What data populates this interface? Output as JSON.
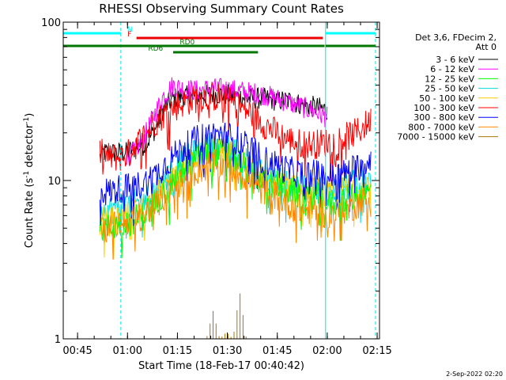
{
  "chart_data": {
    "type": "line",
    "title": "RHESSI Observing Summary Count Rates",
    "xlabel": "Start Time (18-Feb-17 00:40:42)",
    "ylabel_main": "Count Rate (s",
    "ylabel_sup1": "-1",
    "ylabel_mid": " detector",
    "ylabel_sup2": "-1",
    "ylabel_end": ")",
    "y_scale": "log",
    "ylim": [
      1,
      100
    ],
    "xlim_minutes": [
      0.0,
      95.0
    ],
    "x_ticks": [
      {
        "label": "00:45",
        "t": 4.3
      },
      {
        "label": "01:00",
        "t": 19.3
      },
      {
        "label": "01:15",
        "t": 34.3
      },
      {
        "label": "01:30",
        "t": 49.3
      },
      {
        "label": "01:45",
        "t": 64.3
      },
      {
        "label": "02:00",
        "t": 79.3
      },
      {
        "label": "02:15",
        "t": 94.3
      }
    ],
    "y_ticks": [
      {
        "label": "1",
        "v": 1
      },
      {
        "label": "10",
        "v": 10
      },
      {
        "label": "100",
        "v": 100
      }
    ],
    "date_stamp": "2-Sep-2022 02:20",
    "legend_header": [
      "Det 3,6, FDecim 2,",
      "Att 0"
    ],
    "series": [
      {
        "name": "3 - 6 keV",
        "color": "#000000",
        "t": [
          11,
          12,
          19,
          20,
          25,
          28,
          30,
          33,
          36,
          40,
          44,
          48,
          52,
          56,
          60,
          64,
          68,
          72,
          76,
          79.3
        ],
        "v": [
          14,
          15,
          15,
          15.5,
          17,
          22,
          28,
          33,
          34,
          34,
          35,
          35,
          34,
          33,
          33,
          32,
          32,
          30,
          29,
          28
        ]
      },
      {
        "name": "6 - 12 keV",
        "color": "#ff00ff",
        "t": [
          19,
          21,
          24,
          27,
          30,
          33,
          36,
          40,
          44,
          48,
          52,
          56,
          60,
          64,
          68,
          72,
          76,
          79.3
        ],
        "v": [
          14,
          15,
          18,
          25,
          34,
          40,
          38,
          37,
          38,
          38,
          37,
          36,
          35,
          33,
          31,
          29,
          27,
          25
        ]
      },
      {
        "name": "12 - 25 keV",
        "color": "#00ff00",
        "t": [
          11,
          14,
          18,
          20,
          24,
          28,
          32,
          36,
          40,
          44,
          48,
          52,
          56,
          60,
          64,
          68,
          72,
          76,
          80,
          84,
          88,
          92.5
        ],
        "v": [
          5,
          5,
          5.5,
          5.5,
          6,
          7.5,
          9.5,
          11.5,
          13.5,
          15,
          15,
          13.5,
          11.5,
          9.5,
          9.5,
          8.5,
          8,
          8,
          7,
          7.5,
          8,
          8.5
        ]
      },
      {
        "name": "25 - 50 keV",
        "color": "#00dddd",
        "t": [
          11,
          14,
          18,
          20,
          24,
          28,
          32,
          36,
          40,
          44,
          48,
          52,
          56,
          60,
          64,
          68,
          72,
          76,
          80,
          84,
          88,
          92.5
        ],
        "v": [
          6.5,
          6.5,
          7,
          7,
          7.5,
          9,
          11,
          13,
          15,
          16.5,
          16.5,
          15,
          13,
          11,
          10.5,
          9.5,
          9,
          9,
          8.5,
          9,
          9.5,
          10
        ]
      },
      {
        "name": "50 - 100 keV",
        "color": "#ffcc00",
        "t": [
          11,
          14,
          18,
          20,
          24,
          28,
          32,
          36,
          40,
          44,
          48,
          52,
          56,
          60,
          64,
          68,
          72,
          76,
          80,
          84,
          88,
          92.5
        ],
        "v": [
          5.5,
          5.5,
          6,
          6,
          6.5,
          8,
          10,
          12,
          14,
          15.5,
          15.5,
          14,
          12,
          10,
          9.8,
          9,
          8.5,
          8.5,
          8,
          8.5,
          9,
          9.5
        ]
      },
      {
        "name": "100 - 300 keV",
        "color": "#ff0000",
        "t": [
          11,
          14,
          17,
          20,
          22,
          25,
          28,
          32,
          36,
          40,
          44,
          48,
          52,
          56,
          60,
          64,
          68,
          72,
          76,
          80,
          84,
          88,
          92.5
        ],
        "v": [
          15,
          14,
          14,
          15,
          17,
          20,
          24,
          28,
          31,
          33,
          34,
          33,
          30,
          27,
          23,
          20,
          18,
          17,
          17,
          17.5,
          18.5,
          20,
          24
        ]
      },
      {
        "name": "300 - 800 keV",
        "color": "#0000ff",
        "t": [
          11,
          14,
          18,
          20,
          24,
          28,
          32,
          36,
          40,
          44,
          48,
          52,
          56,
          60,
          64,
          68,
          72,
          76,
          80,
          84,
          88,
          92.5
        ],
        "v": [
          8.5,
          8.5,
          9,
          9,
          9.5,
          11,
          13.5,
          16,
          18,
          19.5,
          19.5,
          18,
          16,
          13.5,
          12.5,
          11.5,
          11,
          11,
          10.5,
          11,
          12,
          14
        ]
      },
      {
        "name": "800 - 7000 keV",
        "color": "#ff8800",
        "t": [
          11,
          14,
          18,
          20,
          24,
          28,
          32,
          36,
          40,
          44,
          48,
          52,
          56,
          60,
          64,
          68,
          72,
          76,
          80,
          84,
          88,
          92.5
        ],
        "v": [
          5,
          5,
          5.5,
          5.5,
          6,
          7,
          8.5,
          10,
          11.5,
          12.5,
          12.5,
          11.5,
          10,
          8.5,
          8,
          7,
          6.5,
          6.5,
          6,
          6.5,
          7,
          8
        ]
      },
      {
        "name": "7000 - 15000 keV",
        "color": "#aa7700",
        "t": [
          40.5,
          43,
          45,
          47,
          49,
          51,
          53,
          55,
          60
        ],
        "v": [
          1,
          1,
          1.5,
          1,
          1.1,
          1,
          2,
          1,
          1
        ]
      }
    ],
    "vlines": [
      {
        "t": 0.0,
        "style": "solid"
      },
      {
        "t": 17.3,
        "style": "dashed"
      },
      {
        "t": 78.8,
        "style": "solid"
      },
      {
        "t": 93.8,
        "style": "dashed"
      }
    ],
    "flag_bars": [
      {
        "label": "N",
        "color": "#00ffff",
        "y": 42,
        "segments": [
          [
            0.0,
            17.3
          ],
          [
            78.8,
            93.8
          ]
        ],
        "label_t": 19.2
      },
      {
        "label": "F",
        "color": "#ee0000",
        "y": 48,
        "segments": [
          [
            22.0,
            78.0
          ]
        ],
        "label_t": 19.3
      },
      {
        "label": "RD0",
        "color": "#007700",
        "y": 58,
        "segments": [
          [
            0.0,
            78.5
          ],
          [
            78.8,
            93.8
          ]
        ],
        "label_t": 35.0
      },
      {
        "label": "RD6",
        "color": "#007700",
        "y": 66,
        "segments": [
          [
            33.0,
            58.5
          ]
        ],
        "label_t": 25.5
      }
    ]
  }
}
